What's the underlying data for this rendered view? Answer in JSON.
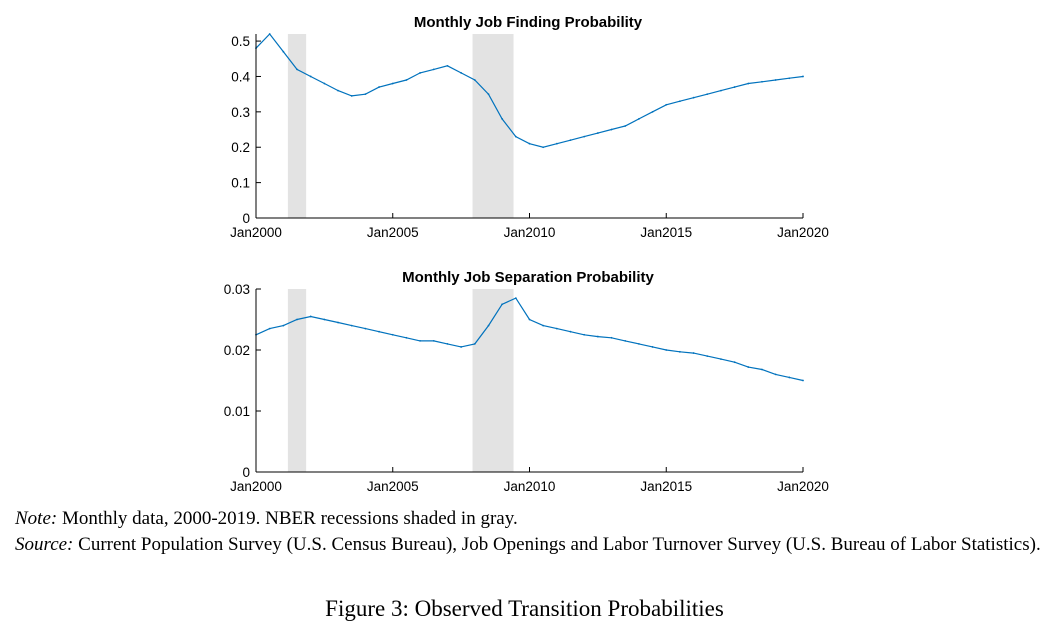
{
  "chart_data": [
    {
      "type": "line",
      "title": "Monthly Job Finding Probability",
      "xlabel": "",
      "ylabel": "",
      "xlim": [
        "2000-01",
        "2020-01"
      ],
      "ylim": [
        0,
        0.52
      ],
      "xticks": [
        "Jan2000",
        "Jan2005",
        "Jan2010",
        "Jan2015",
        "Jan2020"
      ],
      "yticks": [
        "0",
        "0.1",
        "0.2",
        "0.3",
        "0.4",
        "0.5"
      ],
      "grid": false,
      "shaded_regions": [
        {
          "start": "2001-03",
          "end": "2001-11"
        },
        {
          "start": "2007-12",
          "end": "2009-06"
        }
      ],
      "series": [
        {
          "color": "#0072bd",
          "x": [
            "2000-01",
            "2000-07",
            "2001-01",
            "2001-07",
            "2002-01",
            "2002-07",
            "2003-01",
            "2003-07",
            "2004-01",
            "2004-07",
            "2005-01",
            "2005-07",
            "2006-01",
            "2006-07",
            "2007-01",
            "2007-07",
            "2008-01",
            "2008-07",
            "2009-01",
            "2009-07",
            "2010-01",
            "2010-07",
            "2011-01",
            "2011-07",
            "2012-01",
            "2012-07",
            "2013-01",
            "2013-07",
            "2014-01",
            "2014-07",
            "2015-01",
            "2015-07",
            "2016-01",
            "2016-07",
            "2017-01",
            "2017-07",
            "2018-01",
            "2018-07",
            "2019-01",
            "2019-07",
            "2020-01"
          ],
          "values": [
            0.48,
            0.52,
            0.47,
            0.42,
            0.4,
            0.38,
            0.36,
            0.345,
            0.35,
            0.37,
            0.38,
            0.39,
            0.41,
            0.42,
            0.43,
            0.41,
            0.39,
            0.35,
            0.28,
            0.23,
            0.21,
            0.2,
            0.21,
            0.22,
            0.23,
            0.24,
            0.25,
            0.26,
            0.28,
            0.3,
            0.32,
            0.33,
            0.34,
            0.35,
            0.36,
            0.37,
            0.38,
            0.385,
            0.39,
            0.395,
            0.4
          ]
        }
      ]
    },
    {
      "type": "line",
      "title": "Monthly Job Separation Probability",
      "xlabel": "",
      "ylabel": "",
      "xlim": [
        "2000-01",
        "2020-01"
      ],
      "ylim": [
        0,
        0.03
      ],
      "xticks": [
        "Jan2000",
        "Jan2005",
        "Jan2010",
        "Jan2015",
        "Jan2020"
      ],
      "yticks": [
        "0",
        "0.01",
        "0.02",
        "0.03"
      ],
      "grid": false,
      "shaded_regions": [
        {
          "start": "2001-03",
          "end": "2001-11"
        },
        {
          "start": "2007-12",
          "end": "2009-06"
        }
      ],
      "series": [
        {
          "color": "#0072bd",
          "x": [
            "2000-01",
            "2000-07",
            "2001-01",
            "2001-07",
            "2002-01",
            "2002-07",
            "2003-01",
            "2003-07",
            "2004-01",
            "2004-07",
            "2005-01",
            "2005-07",
            "2006-01",
            "2006-07",
            "2007-01",
            "2007-07",
            "2008-01",
            "2008-07",
            "2009-01",
            "2009-07",
            "2010-01",
            "2010-07",
            "2011-01",
            "2011-07",
            "2012-01",
            "2012-07",
            "2013-01",
            "2013-07",
            "2014-01",
            "2014-07",
            "2015-01",
            "2015-07",
            "2016-01",
            "2016-07",
            "2017-01",
            "2017-07",
            "2018-01",
            "2018-07",
            "2019-01",
            "2019-07",
            "2020-01"
          ],
          "values": [
            0.0225,
            0.0235,
            0.024,
            0.025,
            0.0255,
            0.025,
            0.0245,
            0.024,
            0.0235,
            0.023,
            0.0225,
            0.022,
            0.0215,
            0.0215,
            0.021,
            0.0205,
            0.021,
            0.024,
            0.0275,
            0.0285,
            0.025,
            0.024,
            0.0235,
            0.023,
            0.0225,
            0.0222,
            0.022,
            0.0215,
            0.021,
            0.0205,
            0.02,
            0.0197,
            0.0195,
            0.019,
            0.0185,
            0.018,
            0.0172,
            0.0168,
            0.016,
            0.0155,
            0.015
          ]
        }
      ]
    }
  ],
  "caption": {
    "note_label": "Note:",
    "note_text": " Monthly data, 2000-2019. NBER recessions shaded in gray.",
    "source_label": "Source:",
    "source_text": " Current Population Survey (U.S. Census Bureau), Job Openings and Labor Turnover Survey (U.S. Bureau of Labor Statistics)."
  },
  "figure_title": "Figure 3: Observed Transition Probabilities",
  "colors": {
    "line": "#0072bd",
    "recession_shade": "#e3e3e3",
    "axis": "#000000"
  }
}
